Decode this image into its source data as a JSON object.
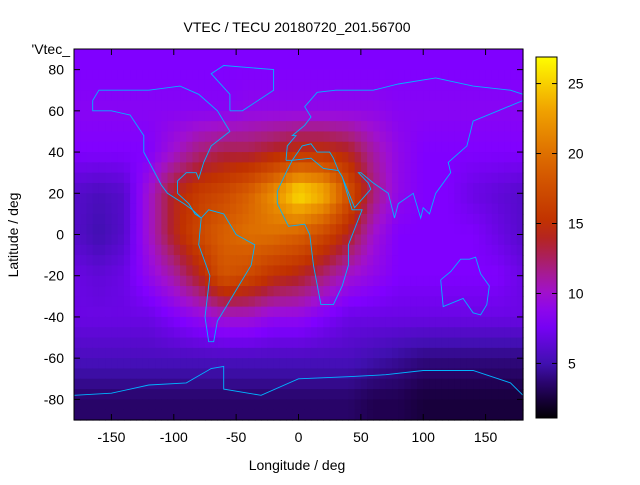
{
  "chart_data": {
    "type": "heatmap",
    "title": "VTEC / TECU 20180720_201.56700",
    "xlabel": "Longitude / deg",
    "ylabel": "Latitude / deg",
    "key_label": "'Vtec_",
    "xlim": [
      -180,
      180
    ],
    "ylim": [
      -90,
      90
    ],
    "xticks": [
      -150,
      -100,
      -50,
      0,
      50,
      100,
      150
    ],
    "yticks": [
      -80,
      -60,
      -40,
      -20,
      0,
      20,
      40,
      60,
      80
    ],
    "colorbar": {
      "range": [
        1.1,
        26.9
      ],
      "ticks": [
        5,
        10,
        15,
        20,
        25
      ]
    },
    "grid": false,
    "lons": [
      -180,
      -160,
      -140,
      -120,
      -100,
      -80,
      -60,
      -40,
      -20,
      0,
      20,
      40,
      60,
      80,
      100,
      120,
      140,
      160,
      180
    ],
    "lats": [
      80,
      60,
      40,
      20,
      0,
      -20,
      -40,
      -60,
      -80
    ],
    "values": [
      [
        8,
        8,
        8,
        8,
        8,
        8,
        8,
        8,
        8,
        8,
        8,
        8,
        8,
        8,
        8,
        8,
        8,
        8,
        8
      ],
      [
        8.5,
        8.5,
        8.5,
        8.5,
        8.5,
        8.5,
        8.5,
        9,
        9,
        9,
        9,
        9,
        9,
        8.5,
        8.5,
        8.5,
        8.5,
        8.5,
        8.5
      ],
      [
        8,
        8,
        8,
        8,
        10,
        12,
        13,
        13,
        14,
        15,
        15,
        14,
        11,
        9,
        8,
        8,
        8,
        8,
        8
      ],
      [
        6,
        5.5,
        6,
        10,
        14,
        16,
        17,
        19,
        22,
        26,
        24,
        18,
        12,
        9,
        8,
        8,
        7,
        6.5,
        6
      ],
      [
        6,
        5,
        6,
        10,
        14,
        17,
        19,
        20,
        20,
        19,
        17,
        14,
        10,
        8,
        8,
        8,
        8,
        7,
        6
      ],
      [
        7,
        6.5,
        7,
        9,
        11,
        14,
        18,
        17,
        15,
        14,
        12,
        10,
        9,
        8,
        8,
        8,
        8,
        8,
        7
      ],
      [
        7,
        7,
        7,
        7,
        8,
        9,
        10,
        10,
        9,
        9,
        8,
        7,
        7,
        7,
        7,
        7,
        7,
        7,
        7
      ],
      [
        5.5,
        5.5,
        5.5,
        5.5,
        5.5,
        5.5,
        5.5,
        5.5,
        5.5,
        5.5,
        5.5,
        5.5,
        5,
        4.5,
        4,
        4,
        4,
        4,
        4
      ],
      [
        3.5,
        3.5,
        3.5,
        3.5,
        3.5,
        3.5,
        3.5,
        3.5,
        3.5,
        3.5,
        3.5,
        3.5,
        3,
        3,
        2.5,
        2.5,
        2.5,
        2.5,
        2.5
      ]
    ]
  },
  "colors": {
    "coastline": "#00b4ff",
    "frame": "#000000"
  }
}
